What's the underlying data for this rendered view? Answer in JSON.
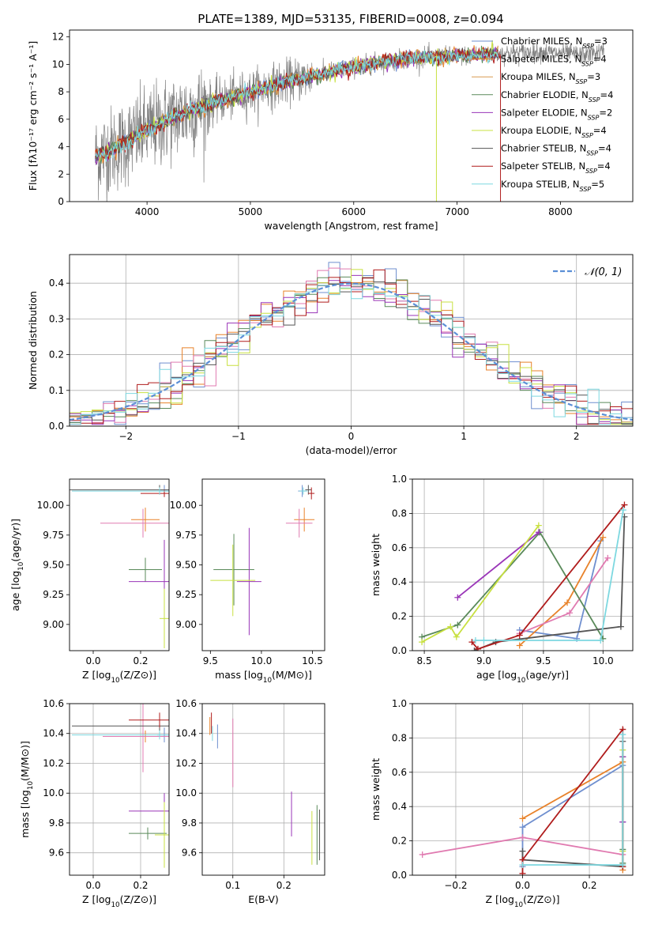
{
  "figure": {
    "title": "PLATE=1389, MJD=53135, FIBERID=0008, z=0.094"
  },
  "colors": {
    "Chabrier MILES": "#6f8fcf",
    "Salpeter MILES": "#e8822a",
    "Kroupa MILES": "#d99a50",
    "Chabrier ELODIE": "#5a8a5a",
    "Salpeter ELODIE": "#9a35b8",
    "Kroupa ELODIE": "#c8e040",
    "Chabrier STELIB": "#555555",
    "Salpeter STELIB": "#b01c1c",
    "Kroupa STELIB": "#7dd8e0",
    "pink": "#e07ab0",
    "data_gray": "#808080",
    "gauss": "#5b8fd6"
  },
  "chart_data": [
    {
      "id": "spectrum",
      "type": "line",
      "xlabel": "wavelength [Angstrom, rest frame]",
      "ylabel": "Flux [fλ10⁻¹⁷ erg cm⁻² s⁻¹ A⁻¹]",
      "xlim": [
        3250,
        8700
      ],
      "ylim": [
        0,
        12.5
      ],
      "xticks": [
        4000,
        5000,
        6000,
        7000,
        8000
      ],
      "yticks": [
        0,
        2,
        4,
        6,
        8,
        10,
        12
      ],
      "legend": "top-right",
      "continuum": [
        [
          3500,
          3.3
        ],
        [
          3700,
          3.9
        ],
        [
          4000,
          5.2
        ],
        [
          4300,
          6.3
        ],
        [
          4600,
          7.1
        ],
        [
          5000,
          8.0
        ],
        [
          5400,
          8.8
        ],
        [
          5800,
          9.5
        ],
        [
          6200,
          10.1
        ],
        [
          6600,
          10.5
        ],
        [
          7000,
          10.6
        ],
        [
          7400,
          10.8
        ],
        [
          7800,
          10.9
        ],
        [
          8200,
          10.7
        ],
        [
          8400,
          10.9
        ]
      ],
      "series": [
        {
          "name": "Chabrier MILES, N_SSP=3",
          "legend_label": "Chabrier MILES, N",
          "legend_sub": "SSP",
          "legend_tail": "=3"
        },
        {
          "name": "Salpeter MILES, N_SSP=4",
          "legend_label": "Salpeter MILES, N",
          "legend_sub": "SSP",
          "legend_tail": "=4"
        },
        {
          "name": "Kroupa MILES, N_SSP=3",
          "legend_label": "Kroupa MILES, N",
          "legend_sub": "SSP",
          "legend_tail": "=3"
        },
        {
          "name": "Chabrier ELODIE, N_SSP=4",
          "legend_label": "Chabrier ELODIE, N",
          "legend_sub": "SSP",
          "legend_tail": "=4"
        },
        {
          "name": "Salpeter ELODIE, N_SSP=2",
          "legend_label": "Salpeter ELODIE, N",
          "legend_sub": "SSP",
          "legend_tail": "=2"
        },
        {
          "name": "Kroupa ELODIE, N_SSP=4",
          "legend_label": "Kroupa ELODIE, N",
          "legend_sub": "SSP",
          "legend_tail": "=4"
        },
        {
          "name": "Chabrier STELIB, N_SSP=4",
          "legend_label": "Chabrier STELIB, N",
          "legend_sub": "SSP",
          "legend_tail": "=4"
        },
        {
          "name": "Salpeter STELIB, N_SSP=4",
          "legend_label": "Salpeter STELIB, N",
          "legend_sub": "SSP",
          "legend_tail": "=4"
        },
        {
          "name": "Kroupa STELIB, N_SSP=5",
          "legend_label": "Kroupa STELIB, N",
          "legend_sub": "SSP",
          "legend_tail": "=5"
        }
      ]
    },
    {
      "id": "residuals",
      "type": "line",
      "xlabel": "(data-model)/error",
      "ylabel": "Normed distribution",
      "xlim": [
        -2.5,
        2.5
      ],
      "ylim": [
        0,
        0.48
      ],
      "xticks": [
        -2,
        -1,
        0,
        1,
        2
      ],
      "yticks": [
        0.0,
        0.1,
        0.2,
        0.3,
        0.4
      ],
      "grid": true,
      "legend": "top-right",
      "gauss_label": "𝒩(0, 1)",
      "bin_width": 0.1
    },
    {
      "id": "age_vs_Z",
      "type": "scatter",
      "xlabel": "Z [log10(Z/Z⊙)]",
      "ylabel": "age  [log10(age/yr)]",
      "xlim": [
        -0.1,
        0.32
      ],
      "ylim": [
        8.78,
        10.22
      ],
      "xticks": [
        0.0,
        0.2
      ],
      "yticks": [
        9.0,
        9.25,
        9.5,
        9.75,
        10.0
      ],
      "points": [
        {
          "c": "Chabrier MILES",
          "x": 0.3,
          "y": 10.12,
          "xerr": 0.02,
          "yerr": 0.05
        },
        {
          "c": "Salpeter MILES",
          "x": 0.22,
          "y": 9.88,
          "xerr": 0.06,
          "yerr": 0.1
        },
        {
          "c": "pink",
          "x": 0.21,
          "y": 9.85,
          "xerr": 0.18,
          "yerr": 0.12
        },
        {
          "c": "Chabrier ELODIE",
          "x": 0.22,
          "y": 9.46,
          "xerr": 0.07,
          "yerr": 0.1
        },
        {
          "c": "Salpeter ELODIE",
          "x": 0.3,
          "y": 9.36,
          "xerr": 0.15,
          "yerr": 0.35
        },
        {
          "c": "Kroupa ELODIE",
          "x": 0.3,
          "y": 9.05,
          "xerr": 0.02,
          "yerr": 0.25
        },
        {
          "c": "Chabrier STELIB",
          "x": 0.28,
          "y": 10.13,
          "xerr": 0.38,
          "yerr": 0.04
        },
        {
          "c": "Salpeter STELIB",
          "x": 0.3,
          "y": 10.1,
          "xerr": 0.1,
          "yerr": 0.03
        },
        {
          "c": "Kroupa STELIB",
          "x": 0.28,
          "y": 10.12,
          "xerr": 0.37,
          "yerr": 0.03
        }
      ]
    },
    {
      "id": "age_vs_mass",
      "type": "scatter",
      "xlabel": "mass [log10(M/M⊙)]",
      "ylabel": "",
      "xlim": [
        9.42,
        10.62
      ],
      "ylim": [
        8.78,
        10.22
      ],
      "xticks": [
        9.5,
        10.0,
        10.5
      ],
      "yticks": [
        9.0,
        9.25,
        9.5,
        9.75,
        10.0
      ],
      "points": [
        {
          "c": "Chabrier MILES",
          "x": 10.4,
          "y": 10.12,
          "xerr": 0.04,
          "yerr": 0.05
        },
        {
          "c": "Salpeter MILES",
          "x": 10.42,
          "y": 9.88,
          "xerr": 0.1,
          "yerr": 0.1
        },
        {
          "c": "pink",
          "x": 10.37,
          "y": 9.85,
          "xerr": 0.13,
          "yerr": 0.12
        },
        {
          "c": "Chabrier ELODIE",
          "x": 9.73,
          "y": 9.46,
          "xerr": 0.2,
          "yerr": 0.3
        },
        {
          "c": "Salpeter ELODIE",
          "x": 9.88,
          "y": 9.36,
          "xerr": 0.12,
          "yerr": 0.45
        },
        {
          "c": "Kroupa ELODIE",
          "x": 9.72,
          "y": 9.37,
          "xerr": 0.22,
          "yerr": 0.3
        },
        {
          "c": "Chabrier STELIB",
          "x": 10.46,
          "y": 10.13,
          "xerr": 0.03,
          "yerr": 0.04
        },
        {
          "c": "Salpeter STELIB",
          "x": 10.49,
          "y": 10.1,
          "xerr": 0.03,
          "yerr": 0.05
        },
        {
          "c": "Kroupa STELIB",
          "x": 10.41,
          "y": 10.12,
          "xerr": 0.04,
          "yerr": 0.03
        }
      ]
    },
    {
      "id": "weight_vs_age",
      "type": "line",
      "xlabel": "age  [log10(age/yr)]",
      "ylabel": "mass weight",
      "xlim": [
        8.4,
        10.25
      ],
      "ylim": [
        0,
        1.0
      ],
      "xticks": [
        8.5,
        9.0,
        9.5,
        10.0
      ],
      "yticks": [
        0.0,
        0.2,
        0.4,
        0.6,
        0.8,
        1.0
      ],
      "grid": true,
      "series": [
        {
          "c": "Chabrier MILES",
          "x": [
            9.3,
            9.78,
            9.98
          ],
          "y": [
            0.12,
            0.07,
            0.64
          ]
        },
        {
          "c": "Salpeter MILES",
          "x": [
            9.3,
            9.7,
            10.0
          ],
          "y": [
            0.03,
            0.28,
            0.66
          ]
        },
        {
          "c": "pink",
          "x": [
            9.3,
            9.72,
            10.04
          ],
          "y": [
            0.1,
            0.22,
            0.54
          ]
        },
        {
          "c": "Chabrier ELODIE",
          "x": [
            8.48,
            8.78,
            9.47,
            10.0
          ],
          "y": [
            0.08,
            0.15,
            0.69,
            0.07
          ]
        },
        {
          "c": "Salpeter ELODIE",
          "x": [
            8.78,
            9.46
          ],
          "y": [
            0.31,
            0.69
          ]
        },
        {
          "c": "Kroupa ELODIE",
          "x": [
            8.48,
            8.72,
            8.77,
            9.46
          ],
          "y": [
            0.05,
            0.14,
            0.08,
            0.73
          ]
        },
        {
          "c": "Chabrier STELIB",
          "x": [
            8.92,
            9.1,
            10.15,
            10.18
          ],
          "y": [
            0.0,
            0.05,
            0.14,
            0.78
          ]
        },
        {
          "c": "Salpeter STELIB",
          "x": [
            8.9,
            8.95,
            9.3,
            10.18
          ],
          "y": [
            0.05,
            0.01,
            0.09,
            0.85
          ]
        },
        {
          "c": "Kroupa STELIB",
          "x": [
            8.93,
            9.0,
            9.98,
            10.17
          ],
          "y": [
            0.06,
            0.06,
            0.06,
            0.82
          ]
        }
      ]
    },
    {
      "id": "mass_vs_Z",
      "type": "scatter",
      "xlabel": "Z [log10(Z/Z⊙)]",
      "ylabel": "mass [log10(M/M⊙)]",
      "xlim": [
        -0.1,
        0.32
      ],
      "ylim": [
        9.45,
        10.6
      ],
      "xticks": [
        0.0,
        0.2
      ],
      "yticks": [
        9.6,
        9.8,
        10.0,
        10.2,
        10.4,
        10.6
      ],
      "grid": true,
      "points": [
        {
          "c": "Chabrier MILES",
          "x": 0.3,
          "y": 10.39,
          "xerr": 0.03,
          "yerr": 0.05
        },
        {
          "c": "Salpeter MILES",
          "x": 0.22,
          "y": 10.38,
          "xerr": 0.1,
          "yerr": 0.04
        },
        {
          "c": "pink",
          "x": 0.21,
          "y": 10.38,
          "xerr": 0.17,
          "yerr": 0.24
        },
        {
          "c": "Chabrier ELODIE",
          "x": 0.23,
          "y": 9.73,
          "xerr": 0.08,
          "yerr": 0.04
        },
        {
          "c": "Salpeter ELODIE",
          "x": 0.3,
          "y": 9.88,
          "xerr": 0.15,
          "yerr": 0.12
        },
        {
          "c": "Kroupa ELODIE",
          "x": 0.3,
          "y": 9.72,
          "xerr": 0.04,
          "yerr": 0.22
        },
        {
          "c": "Chabrier STELIB",
          "x": 0.28,
          "y": 10.45,
          "xerr": 0.37,
          "yerr": 0.05
        },
        {
          "c": "Salpeter STELIB",
          "x": 0.28,
          "y": 10.49,
          "xerr": 0.13,
          "yerr": 0.05
        },
        {
          "c": "Kroupa STELIB",
          "x": 0.28,
          "y": 10.39,
          "xerr": 0.37,
          "yerr": 0.03
        }
      ]
    },
    {
      "id": "mass_vs_EBV",
      "type": "scatter",
      "xlabel": "E(B-V)",
      "ylabel": "",
      "xlim": [
        0.04,
        0.28
      ],
      "ylim": [
        9.45,
        10.6
      ],
      "xticks": [
        0.1,
        0.2
      ],
      "yticks": [
        9.6,
        9.8,
        10.0,
        10.2,
        10.4,
        10.6
      ],
      "grid": true,
      "points": [
        {
          "c": "Chabrier MILES",
          "x": 0.07,
          "y": 10.38,
          "yerr": 0.08
        },
        {
          "c": "Salpeter MILES",
          "x": 0.055,
          "y": 10.45,
          "yerr": 0.06
        },
        {
          "c": "pink",
          "x": 0.1,
          "y": 10.27,
          "yerr": 0.23
        },
        {
          "c": "Chabrier ELODIE",
          "x": 0.265,
          "y": 9.72,
          "yerr": 0.2
        },
        {
          "c": "Salpeter ELODIE",
          "x": 0.215,
          "y": 9.86,
          "yerr": 0.15
        },
        {
          "c": "Kroupa ELODIE",
          "x": 0.255,
          "y": 9.7,
          "yerr": 0.18
        },
        {
          "c": "Chabrier STELIB",
          "x": 0.27,
          "y": 9.72,
          "yerr": 0.17
        },
        {
          "c": "Salpeter STELIB",
          "x": 0.058,
          "y": 10.47,
          "yerr": 0.07
        },
        {
          "c": "Kroupa STELIB",
          "x": 0.06,
          "y": 10.4,
          "yerr": 0.05
        }
      ]
    },
    {
      "id": "weight_vs_Z",
      "type": "line",
      "xlabel": "Z [log10(Z/Z⊙)]",
      "ylabel": "mass weight",
      "xlim": [
        -0.33,
        0.33
      ],
      "ylim": [
        0,
        1.0
      ],
      "xticks": [
        -0.2,
        0.0,
        0.2
      ],
      "yticks": [
        0.0,
        0.2,
        0.4,
        0.6,
        0.8,
        1.0
      ],
      "grid": true,
      "series": [
        {
          "c": "Chabrier MILES",
          "x": [
            0.0,
            0.0,
            0.3,
            0.3
          ],
          "y": [
            0.05,
            0.28,
            0.64,
            0.31
          ]
        },
        {
          "c": "Salpeter MILES",
          "x": [
            0.0,
            0.3,
            0.3
          ],
          "y": [
            0.33,
            0.66,
            0.03
          ]
        },
        {
          "c": "pink",
          "x": [
            -0.3,
            0.0,
            0.3
          ],
          "y": [
            0.12,
            0.22,
            0.12
          ]
        },
        {
          "c": "Chabrier ELODIE",
          "x": [
            0.3,
            0.3,
            0.3
          ],
          "y": [
            0.15,
            0.69,
            0.07
          ]
        },
        {
          "c": "Salpeter ELODIE",
          "x": [
            0.3,
            0.3
          ],
          "y": [
            0.69,
            0.31
          ]
        },
        {
          "c": "Kroupa ELODIE",
          "x": [
            0.3,
            0.3,
            0.3
          ],
          "y": [
            0.73,
            0.14,
            0.05
          ]
        },
        {
          "c": "Chabrier STELIB",
          "x": [
            0.0,
            0.0,
            0.3,
            0.3
          ],
          "y": [
            0.14,
            0.09,
            0.05,
            0.78
          ]
        },
        {
          "c": "Salpeter STELIB",
          "x": [
            0.0,
            0.0,
            0.3,
            0.3
          ],
          "y": [
            0.01,
            0.09,
            0.85,
            0.05
          ]
        },
        {
          "c": "Kroupa STELIB",
          "x": [
            0.0,
            0.3,
            0.3
          ],
          "y": [
            0.06,
            0.06,
            0.82
          ]
        }
      ]
    }
  ]
}
